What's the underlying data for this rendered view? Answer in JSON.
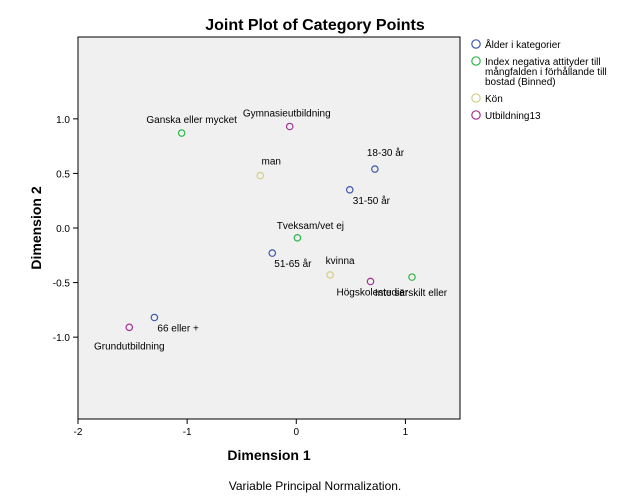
{
  "chart_data": {
    "type": "scatter",
    "title": "Joint Plot of Category Points",
    "xlabel": "Dimension 1",
    "ylabel": "Dimension 2",
    "footnote": "Variable Principal Normalization.",
    "xlim": [
      -2,
      1.5
    ],
    "ylim": [
      -1.75,
      1.75
    ],
    "xticks": [
      -2,
      -1,
      0,
      1
    ],
    "xtick_labels": [
      "-2",
      "-1",
      "0",
      "1"
    ],
    "yticks": [
      -1.0,
      -0.5,
      0.0,
      0.5,
      1.0
    ],
    "ytick_labels": [
      "-1.0",
      "-0.5",
      "0.0",
      "0.5",
      "1.0"
    ],
    "grid": false,
    "legend_position": "right",
    "series": [
      {
        "name": "Ålder i kategorier",
        "color": "#3e58ac",
        "points": [
          {
            "label": "18-30 år",
            "x": 0.72,
            "y": 0.54
          },
          {
            "label": "31-50 år",
            "x": 0.49,
            "y": 0.35
          },
          {
            "label": "51-65 år",
            "x": -0.22,
            "y": -0.23
          },
          {
            "label": "66 eller +",
            "x": -1.3,
            "y": -0.82
          }
        ]
      },
      {
        "name": "Index negativa attityder till mångfalden i förhållande till bostad (Binned)",
        "color": "#2eb848",
        "points": [
          {
            "label": "Ganska eller mycket",
            "x": -1.05,
            "y": 0.87
          },
          {
            "label": "Tveksam/vet ej",
            "x": 0.01,
            "y": -0.09
          },
          {
            "label": "Inte särskilt eller",
            "x": 1.06,
            "y": -0.45
          }
        ]
      },
      {
        "name": "Kön",
        "color": "#d4ce87",
        "points": [
          {
            "label": "man",
            "x": -0.33,
            "y": 0.48
          },
          {
            "label": "kvinna",
            "x": 0.31,
            "y": -0.43
          }
        ]
      },
      {
        "name": "Utbildning13",
        "color": "#a23391",
        "points": [
          {
            "label": "Gymnasieutbildning",
            "x": -0.06,
            "y": 0.93
          },
          {
            "label": "Högskolestudier",
            "x": 0.68,
            "y": -0.49
          },
          {
            "label": "Grundutbildning",
            "x": -1.53,
            "y": -0.91
          }
        ]
      }
    ]
  }
}
